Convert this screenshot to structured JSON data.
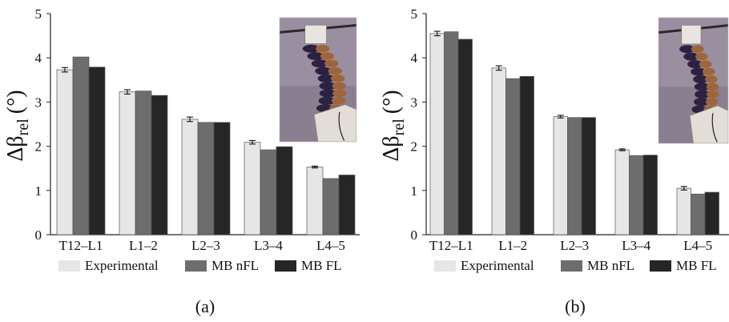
{
  "chart_data": [
    {
      "type": "bar",
      "panel_label": "(a)",
      "ylabel": {
        "symbol": "Δβ",
        "subscript": "rel",
        "unit": "(°)"
      },
      "ylim": [
        0,
        5
      ],
      "yticks": [
        "0",
        "1",
        "2",
        "3",
        "4",
        "5"
      ],
      "categories": [
        "T12–L1",
        "L1–2",
        "L2–3",
        "L3–4",
        "L4–5"
      ],
      "series": [
        {
          "name": "Experimental",
          "values": [
            3.73,
            3.23,
            2.61,
            2.09,
            1.53
          ],
          "errors": [
            0.05,
            0.05,
            0.05,
            0.04,
            0.02
          ],
          "color": "#e6e6e6"
        },
        {
          "name": "MB nFL",
          "values": [
            4.02,
            3.25,
            2.54,
            1.92,
            1.27
          ],
          "color": "#6d6d6d"
        },
        {
          "name": "MB FL",
          "values": [
            3.79,
            3.15,
            2.54,
            1.99,
            1.35
          ],
          "color": "#262626"
        }
      ],
      "legend_position": "bottom",
      "inset_photo": "robotic-spine-photo"
    },
    {
      "type": "bar",
      "panel_label": "(b)",
      "ylabel": {
        "symbol": "Δβ",
        "subscript": "rel",
        "unit": "(°)"
      },
      "ylim": [
        0,
        5
      ],
      "yticks": [
        "0",
        "1",
        "2",
        "3",
        "4",
        "5"
      ],
      "categories": [
        "T12–L1",
        "L1–2",
        "L2–3",
        "L3–4",
        "L4–5"
      ],
      "series": [
        {
          "name": "Experimental",
          "values": [
            4.55,
            3.77,
            2.67,
            1.92,
            1.05
          ],
          "errors": [
            0.05,
            0.05,
            0.03,
            0.02,
            0.04
          ],
          "color": "#e6e6e6"
        },
        {
          "name": "MB nFL",
          "values": [
            4.59,
            3.53,
            2.65,
            1.79,
            0.92
          ],
          "color": "#6d6d6d"
        },
        {
          "name": "MB FL",
          "values": [
            4.42,
            3.58,
            2.65,
            1.8,
            0.96
          ],
          "color": "#262626"
        }
      ],
      "legend_position": "bottom",
      "inset_photo": "robotic-spine-photo"
    }
  ]
}
